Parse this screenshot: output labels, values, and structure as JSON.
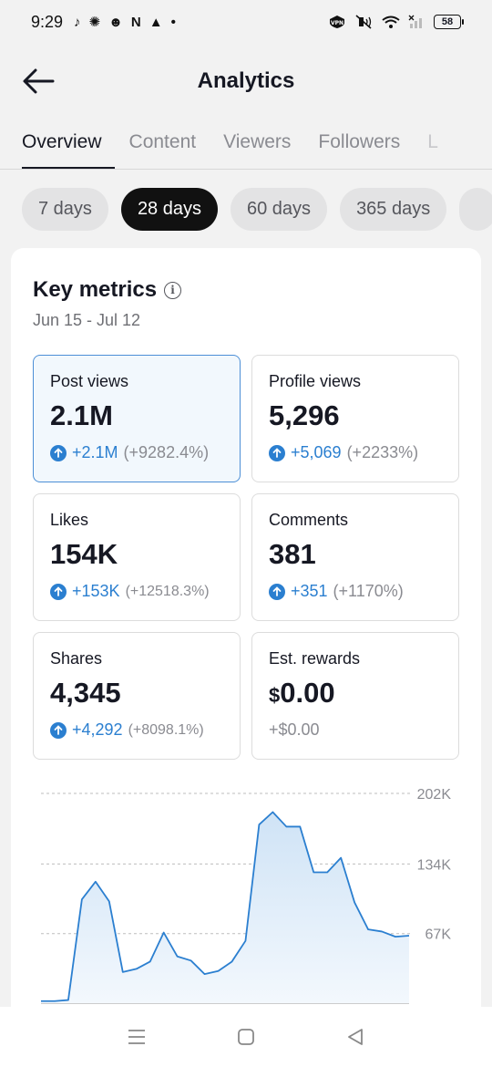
{
  "status": {
    "time": "9:29",
    "left_icons": [
      "tiktok-icon",
      "app-icon",
      "app-icon",
      "n-icon",
      "warning-icon",
      "dot-icon"
    ],
    "battery": "58"
  },
  "header": {
    "title": "Analytics"
  },
  "tabs": [
    {
      "label": "Overview",
      "active": true
    },
    {
      "label": "Content",
      "active": false
    },
    {
      "label": "Viewers",
      "active": false
    },
    {
      "label": "Followers",
      "active": false
    },
    {
      "label": "L",
      "active": false
    }
  ],
  "ranges": [
    {
      "label": "7 days",
      "active": false
    },
    {
      "label": "28 days",
      "active": true
    },
    {
      "label": "60 days",
      "active": false
    },
    {
      "label": "365 days",
      "active": false
    }
  ],
  "key_metrics": {
    "title": "Key metrics",
    "date_range": "Jun 15 - Jul 12",
    "metrics": [
      {
        "label": "Post views",
        "value": "2.1M",
        "delta": "+2.1M",
        "pct": "(+9282.4%)"
      },
      {
        "label": "Profile views",
        "value": "5,296",
        "delta": "+5,069",
        "pct": "(+2233%)"
      },
      {
        "label": "Likes",
        "value": "154K",
        "delta": "+153K",
        "pct": "(+12518.3%)"
      },
      {
        "label": "Comments",
        "value": "381",
        "delta": "+351",
        "pct": "(+1170%)"
      },
      {
        "label": "Shares",
        "value": "4,345",
        "delta": "+4,292",
        "pct": "(+8098.1%)"
      },
      {
        "label": "Est. rewards",
        "value_currency": "$",
        "value": "0.00",
        "plain": "+$0.00"
      }
    ]
  },
  "chart_data": {
    "type": "area",
    "title": "",
    "xlabel": "",
    "ylabel": "",
    "ylim": [
      0,
      202000
    ],
    "yticks": [
      "202K",
      "134K",
      "67K"
    ],
    "ytick_values": [
      202000,
      134000,
      67000
    ],
    "grid": true,
    "series": [
      {
        "values": [
          2000,
          2000,
          3000,
          100000,
          117000,
          98000,
          30000,
          33000,
          40000,
          68000,
          45000,
          41000,
          28000,
          31000,
          40000,
          60000,
          172000,
          184000,
          170000,
          170000,
          126000,
          126000,
          140000,
          97000,
          71000,
          69000,
          64000,
          65000
        ]
      }
    ],
    "colors": {
      "line": "#2b7fd0",
      "fill_top": "#cfe3f6",
      "fill_bottom": "#f3f8fd"
    }
  }
}
